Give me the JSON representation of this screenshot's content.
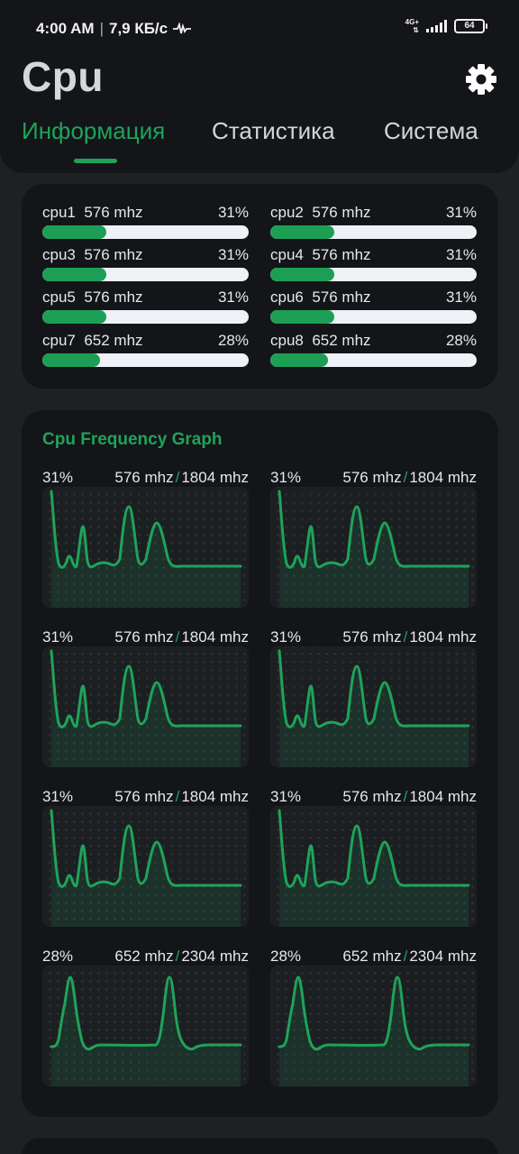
{
  "status_bar": {
    "time": "4:00 AM",
    "separator": "|",
    "net_speed": "7,9 КБ/с",
    "net_type": "4G+",
    "battery": "64"
  },
  "header": {
    "title": "Cpu",
    "settings_icon": "gear-icon",
    "tabs": [
      {
        "label": "Информация",
        "active": true
      },
      {
        "label": "Статистика",
        "active": false
      },
      {
        "label": "Система",
        "active": false
      }
    ]
  },
  "cores": [
    {
      "name": "cpu1",
      "freq": "576 mhz",
      "percent": "31%",
      "load": 0.31
    },
    {
      "name": "cpu2",
      "freq": "576 mhz",
      "percent": "31%",
      "load": 0.31
    },
    {
      "name": "cpu3",
      "freq": "576 mhz",
      "percent": "31%",
      "load": 0.31
    },
    {
      "name": "cpu4",
      "freq": "576 mhz",
      "percent": "31%",
      "load": 0.31
    },
    {
      "name": "cpu5",
      "freq": "576 mhz",
      "percent": "31%",
      "load": 0.31
    },
    {
      "name": "cpu6",
      "freq": "576 mhz",
      "percent": "31%",
      "load": 0.31
    },
    {
      "name": "cpu7",
      "freq": "652 mhz",
      "percent": "28%",
      "load": 0.28
    },
    {
      "name": "cpu8",
      "freq": "652 mhz",
      "percent": "28%",
      "load": 0.28
    }
  ],
  "frequency_graph": {
    "title": "Cpu Frequency Graph",
    "accent_color": "#1fa35a",
    "graphs": [
      {
        "percent": "31%",
        "current": "576 mhz",
        "max": "1804 mhz",
        "shape": "a"
      },
      {
        "percent": "31%",
        "current": "576 mhz",
        "max": "1804 mhz",
        "shape": "a"
      },
      {
        "percent": "31%",
        "current": "576 mhz",
        "max": "1804 mhz",
        "shape": "a"
      },
      {
        "percent": "31%",
        "current": "576 mhz",
        "max": "1804 mhz",
        "shape": "a"
      },
      {
        "percent": "31%",
        "current": "576 mhz",
        "max": "1804 mhz",
        "shape": "a"
      },
      {
        "percent": "31%",
        "current": "576 mhz",
        "max": "1804 mhz",
        "shape": "a"
      },
      {
        "percent": "28%",
        "current": "652 mhz",
        "max": "2304 mhz",
        "shape": "b"
      },
      {
        "percent": "28%",
        "current": "652 mhz",
        "max": "2304 mhz",
        "shape": "b"
      }
    ]
  }
}
